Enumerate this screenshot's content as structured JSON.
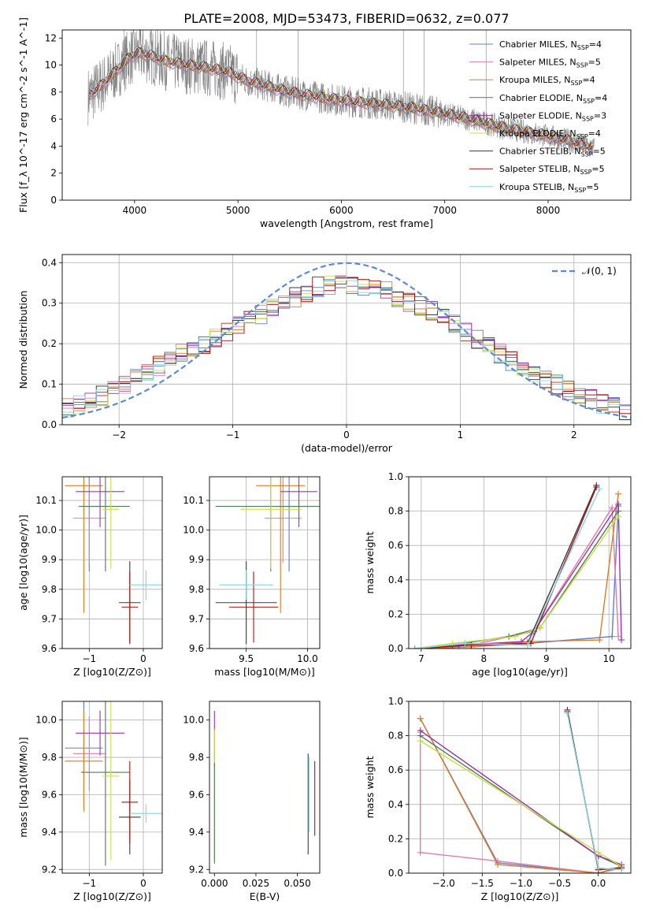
{
  "figure_title": "PLATE=2008, MJD=53473, FIBERID=0632, z=0.077",
  "colors": {
    "chabrier_miles": "#5b7fd6",
    "salpeter_miles": "#e07aa8",
    "kroupa_miles": "#e07b20",
    "chabrier_elodie": "#4f7a5a",
    "salpeter_elodie": "#a030b0",
    "kroupa_elodie": "#c8e040",
    "chabrier_stelib": "#3a3a3a",
    "salpeter_stelib": "#b01010",
    "kroupa_stelib": "#80d8e0",
    "spectrum": "#808080",
    "gaussian": "#5b8ad6",
    "grid": "#b0b0b0"
  },
  "chart_data": [
    {
      "type": "line",
      "title": "PLATE=2008, MJD=53473, FIBERID=0632, z=0.077",
      "xlabel": "wavelength [Angstrom, rest frame]",
      "ylabel": "Flux [f_λ 10^-17 erg cm^-2 s^-1 A^-1]",
      "xlim": [
        3300,
        8800
      ],
      "ylim": [
        0,
        12.6
      ],
      "xticks": [
        "4000",
        "5000",
        "6000",
        "7000",
        "8000"
      ],
      "yticks": [
        "0",
        "2",
        "4",
        "6",
        "8",
        "10",
        "12"
      ],
      "grid": false,
      "legend_position": "top-right",
      "legend": [
        {
          "model": "Chabrier MILES",
          "nssp": "4"
        },
        {
          "model": "Salpeter MILES",
          "nssp": "5"
        },
        {
          "model": "Kroupa MILES",
          "nssp": "4"
        },
        {
          "model": "Chabrier ELODIE",
          "nssp": "4"
        },
        {
          "model": "Salpeter ELODIE",
          "nssp": "3"
        },
        {
          "model": "Kroupa ELODIE",
          "nssp": "4"
        },
        {
          "model": "Chabrier STELIB",
          "nssp": "5"
        },
        {
          "model": "Salpeter STELIB",
          "nssp": "5"
        },
        {
          "model": "Kroupa STELIB",
          "nssp": "5"
        }
      ],
      "model_continuum": {
        "x": [
          3550,
          3650,
          3750,
          3850,
          3950,
          4050,
          4150,
          4300,
          4500,
          4700,
          4900,
          5100,
          5300,
          5500,
          5800,
          6100,
          6400,
          6700,
          7000,
          7300,
          7600,
          7900,
          8200,
          8450
        ],
        "y": [
          7.7,
          8.3,
          9.0,
          9.8,
          10.6,
          10.9,
          10.7,
          10.3,
          10.0,
          9.8,
          9.5,
          8.8,
          8.4,
          8.0,
          7.6,
          7.3,
          7.1,
          6.8,
          6.4,
          5.9,
          5.3,
          4.9,
          4.4,
          3.8
        ]
      }
    },
    {
      "type": "line",
      "xlabel": "(data-model)/error",
      "ylabel": "Normed distribution",
      "xlim": [
        -2.5,
        2.5
      ],
      "ylim": [
        0,
        0.42
      ],
      "xticks": [
        "−2",
        "−1",
        "0",
        "1",
        "2"
      ],
      "yticks": [
        "0.0",
        "0.1",
        "0.2",
        "0.3",
        "0.4"
      ],
      "grid": true,
      "legend_position": "top-right",
      "legend": [
        "𝒩(0, 1)"
      ],
      "histogram_envelope": {
        "x": [
          -2.5,
          -2.25,
          -2.0,
          -1.75,
          -1.5,
          -1.25,
          -1.0,
          -0.75,
          -0.5,
          -0.25,
          0.0,
          0.25,
          0.5,
          0.75,
          1.0,
          1.25,
          1.5,
          1.75,
          2.0,
          2.25,
          2.5
        ],
        "y": [
          0.04,
          0.06,
          0.09,
          0.13,
          0.17,
          0.2,
          0.24,
          0.27,
          0.31,
          0.34,
          0.35,
          0.34,
          0.31,
          0.28,
          0.24,
          0.19,
          0.15,
          0.11,
          0.08,
          0.05,
          0.03
        ]
      }
    },
    {
      "type": "scatter",
      "xlabel": "Z [log10(Z/Z⊙)]",
      "ylabel": "age [log10(age/yr)]",
      "xlim": [
        -1.5,
        0.35
      ],
      "ylim": [
        9.6,
        10.18
      ],
      "xticks": [
        "−1",
        "0"
      ],
      "yticks": [
        "9.6",
        "9.7",
        "9.8",
        "9.9",
        "10.0",
        "10.1"
      ],
      "grid": true,
      "points": [
        {
          "model": "chabrier_miles",
          "x": -1.0,
          "y": 10.08,
          "xerr": 0.2,
          "yerr": 0.22
        },
        {
          "model": "salpeter_miles",
          "x": -1.0,
          "y": 10.04,
          "xerr": 0.3,
          "yerr": 0.15
        },
        {
          "model": "kroupa_miles",
          "x": -1.1,
          "y": 10.15,
          "xerr": 0.35,
          "yerr": 0.43
        },
        {
          "model": "chabrier_elodie",
          "x": -0.7,
          "y": 10.08,
          "xerr": 0.45,
          "yerr": 0.22
        },
        {
          "model": "salpeter_elodie",
          "x": -0.8,
          "y": 10.13,
          "xerr": 0.45,
          "yerr": 0.12
        },
        {
          "model": "kroupa_elodie",
          "x": -0.6,
          "y": 10.07,
          "xerr": 0.15,
          "yerr": 0.2
        },
        {
          "model": "chabrier_stelib",
          "x": -0.25,
          "y": 9.755,
          "xerr": 0.2,
          "yerr": 0.14
        },
        {
          "model": "salpeter_stelib",
          "x": -0.25,
          "y": 9.74,
          "xerr": 0.15,
          "yerr": 0.12
        },
        {
          "model": "kroupa_stelib",
          "x": 0.05,
          "y": 9.815,
          "xerr": 0.3,
          "yerr": 0.05
        }
      ]
    },
    {
      "type": "scatter",
      "xlabel": "mass [log10(M/M⊙)]",
      "ylabel": "",
      "xlim": [
        9.2,
        10.1
      ],
      "ylim": [
        9.6,
        10.18
      ],
      "xticks": [
        "9.5",
        "10.0"
      ],
      "yticks": [
        "9.6",
        "9.7",
        "9.8",
        "9.9",
        "10.0",
        "10.1"
      ],
      "grid": true,
      "points": [
        {
          "model": "chabrier_miles",
          "x": 9.85,
          "y": 10.08,
          "xerr": 0.1,
          "yerr": 0.22
        },
        {
          "model": "salpeter_miles",
          "x": 9.8,
          "y": 10.04,
          "xerr": 0.15,
          "yerr": 0.15
        },
        {
          "model": "kroupa_miles",
          "x": 9.78,
          "y": 10.15,
          "xerr": 0.2,
          "yerr": 0.43
        },
        {
          "model": "chabrier_elodie",
          "x": 9.7,
          "y": 10.08,
          "xerr": 0.45,
          "yerr": 0.22
        },
        {
          "model": "salpeter_elodie",
          "x": 9.93,
          "y": 10.13,
          "xerr": 0.15,
          "yerr": 0.12
        },
        {
          "model": "kroupa_elodie",
          "x": 9.7,
          "y": 10.07,
          "xerr": 0.25,
          "yerr": 0.2
        },
        {
          "model": "chabrier_stelib",
          "x": 9.5,
          "y": 9.755,
          "xerr": 0.25,
          "yerr": 0.14
        },
        {
          "model": "salpeter_stelib",
          "x": 9.56,
          "y": 9.74,
          "xerr": 0.2,
          "yerr": 0.12
        },
        {
          "model": "kroupa_stelib",
          "x": 9.5,
          "y": 9.815,
          "xerr": 0.22,
          "yerr": 0.05
        }
      ]
    },
    {
      "type": "line",
      "xlabel": "age [log10(age/yr)]",
      "ylabel": "mass weight",
      "xlim": [
        6.8,
        10.35
      ],
      "ylim": [
        0,
        1.0
      ],
      "xticks": [
        "7",
        "8",
        "9",
        "10"
      ],
      "yticks": [
        "0.0",
        "0.2",
        "0.4",
        "0.6",
        "0.8",
        "1.0"
      ],
      "grid": true,
      "series": [
        {
          "model": "chabrier_miles",
          "x": [
            6.9,
            7.8,
            8.7,
            10.05,
            10.15
          ],
          "y": [
            0.0,
            0.01,
            0.03,
            0.07,
            0.83
          ]
        },
        {
          "model": "salpeter_miles",
          "x": [
            6.9,
            7.8,
            8.8,
            10.05,
            10.15
          ],
          "y": [
            0.0,
            0.02,
            0.1,
            0.82,
            0.07
          ]
        },
        {
          "model": "kroupa_miles",
          "x": [
            6.9,
            7.8,
            8.7,
            9.85,
            10.15
          ],
          "y": [
            0.0,
            0.01,
            0.04,
            0.05,
            0.9
          ]
        },
        {
          "model": "chabrier_elodie",
          "x": [
            6.9,
            7.5,
            8.4,
            8.9,
            10.15
          ],
          "y": [
            0.0,
            0.02,
            0.07,
            0.12,
            0.8
          ]
        },
        {
          "model": "salpeter_elodie",
          "x": [
            6.9,
            7.6,
            8.6,
            8.8,
            10.15,
            10.2
          ],
          "y": [
            0.0,
            0.02,
            0.04,
            0.1,
            0.84,
            0.05
          ]
        },
        {
          "model": "kroupa_elodie",
          "x": [
            6.9,
            7.5,
            8.5,
            8.9,
            10.15
          ],
          "y": [
            0.0,
            0.03,
            0.07,
            0.12,
            0.77
          ]
        },
        {
          "model": "chabrier_stelib",
          "x": [
            6.9,
            7.8,
            8.7,
            9.8
          ],
          "y": [
            0.0,
            0.02,
            0.03,
            0.95
          ]
        },
        {
          "model": "salpeter_stelib",
          "x": [
            6.9,
            7.8,
            8.75,
            9.8
          ],
          "y": [
            0.0,
            0.02,
            0.03,
            0.94
          ]
        },
        {
          "model": "kroupa_stelib",
          "x": [
            6.9,
            7.7,
            8.7,
            9.85
          ],
          "y": [
            0.0,
            0.03,
            0.02,
            0.93
          ]
        }
      ]
    },
    {
      "type": "scatter",
      "xlabel": "Z [log10(Z/Z⊙)]",
      "ylabel": "mass [log10(M/M⊙)]",
      "xlim": [
        -1.5,
        0.35
      ],
      "ylim": [
        9.18,
        10.1
      ],
      "xticks": [
        "−1",
        "0"
      ],
      "yticks": [
        "9.2",
        "9.4",
        "9.6",
        "9.8",
        "10.0"
      ],
      "grid": true,
      "points": [
        {
          "model": "chabrier_miles",
          "x": -1.1,
          "y": 9.85,
          "xerr": 0.35,
          "yerr": 0.32
        },
        {
          "model": "salpeter_miles",
          "x": -1.0,
          "y": 9.82,
          "xerr": 0.3,
          "yerr": 0.2
        },
        {
          "model": "kroupa_miles",
          "x": -1.1,
          "y": 9.78,
          "xerr": 0.35,
          "yerr": 0.27
        },
        {
          "model": "chabrier_elodie",
          "x": -0.7,
          "y": 9.72,
          "xerr": 0.45,
          "yerr": 0.5
        },
        {
          "model": "salpeter_elodie",
          "x": -0.8,
          "y": 9.93,
          "xerr": 0.45,
          "yerr": 0.12
        },
        {
          "model": "kroupa_elodie",
          "x": -0.6,
          "y": 9.7,
          "xerr": 0.15,
          "yerr": 0.45
        },
        {
          "model": "chabrier_stelib",
          "x": -0.25,
          "y": 9.48,
          "xerr": 0.2,
          "yerr": 0.2
        },
        {
          "model": "salpeter_stelib",
          "x": -0.25,
          "y": 9.56,
          "xerr": 0.15,
          "yerr": 0.22
        },
        {
          "model": "kroupa_stelib",
          "x": 0.05,
          "y": 9.5,
          "xerr": 0.3,
          "yerr": 0.05
        }
      ]
    },
    {
      "type": "scatter",
      "xlabel": "E(B-V)",
      "ylabel": "",
      "xlim": [
        -0.003,
        0.0635
      ],
      "ylim": [
        9.18,
        10.1
      ],
      "xticks": [
        "0.000",
        "0.025",
        "0.050"
      ],
      "yticks": [
        "9.2",
        "9.4",
        "9.6",
        "9.8",
        "10.0"
      ],
      "grid": false,
      "points": [
        {
          "model": "salpeter_elodie",
          "x": 0.0,
          "y": 9.9,
          "xerr": 0,
          "yerr": 0.15
        },
        {
          "model": "kroupa_elodie",
          "x": 0.0,
          "y": 9.6,
          "xerr": 0,
          "yerr": 0.35
        },
        {
          "model": "chabrier_elodie",
          "x": 0.0,
          "y": 9.5,
          "xerr": 0,
          "yerr": 0.27
        },
        {
          "model": "chabrier_stelib",
          "x": 0.0565,
          "y": 9.55,
          "xerr": 0,
          "yerr": 0.27
        },
        {
          "model": "kroupa_stelib",
          "x": 0.057,
          "y": 9.6,
          "xerr": 0,
          "yerr": 0.2
        },
        {
          "model": "salpeter_stelib",
          "x": 0.0605,
          "y": 9.58,
          "xerr": 0,
          "yerr": 0.2
        }
      ]
    },
    {
      "type": "line",
      "xlabel": "Z [log10(Z/Z⊙)]",
      "ylabel": "mass weight",
      "xlim": [
        -2.45,
        0.42
      ],
      "ylim": [
        0,
        1.0
      ],
      "xticks": [
        "−2.0",
        "−1.5",
        "−1.0",
        "−0.5",
        "0.0"
      ],
      "yticks": [
        "0.0",
        "0.2",
        "0.4",
        "0.6",
        "0.8",
        "1.0"
      ],
      "grid": true,
      "series": [
        {
          "model": "chabrier_miles",
          "x": [
            -2.3,
            -1.3,
            0.0,
            0.3
          ],
          "y": [
            0.9,
            0.06,
            0.0,
            0.03
          ]
        },
        {
          "model": "salpeter_miles",
          "x": [
            -2.3,
            -2.3,
            -1.3,
            0.0,
            0.3
          ],
          "y": [
            0.82,
            0.12,
            0.07,
            0.0,
            0.03
          ]
        },
        {
          "model": "kroupa_miles",
          "x": [
            -2.3,
            -1.3,
            0.0,
            0.3
          ],
          "y": [
            0.9,
            0.05,
            0.0,
            0.04
          ]
        },
        {
          "model": "chabrier_elodie",
          "x": [
            -2.3,
            0.0,
            0.3
          ],
          "y": [
            0.8,
            0.1,
            0.04
          ]
        },
        {
          "model": "salpeter_elodie",
          "x": [
            -2.3,
            0.0,
            0.3
          ],
          "y": [
            0.83,
            0.1,
            0.05
          ]
        },
        {
          "model": "kroupa_elodie",
          "x": [
            -2.3,
            0.0,
            0.3
          ],
          "y": [
            0.77,
            0.12,
            0.04
          ]
        },
        {
          "model": "chabrier_stelib",
          "x": [
            -0.4,
            0.0,
            0.3
          ],
          "y": [
            0.95,
            0.02,
            0.03
          ]
        },
        {
          "model": "salpeter_stelib",
          "x": [
            -0.4,
            0.0,
            0.3
          ],
          "y": [
            0.94,
            0.02,
            0.03
          ]
        },
        {
          "model": "kroupa_stelib",
          "x": [
            -0.4,
            0.0,
            0.3
          ],
          "y": [
            0.93,
            0.03,
            0.02
          ]
        }
      ]
    }
  ]
}
